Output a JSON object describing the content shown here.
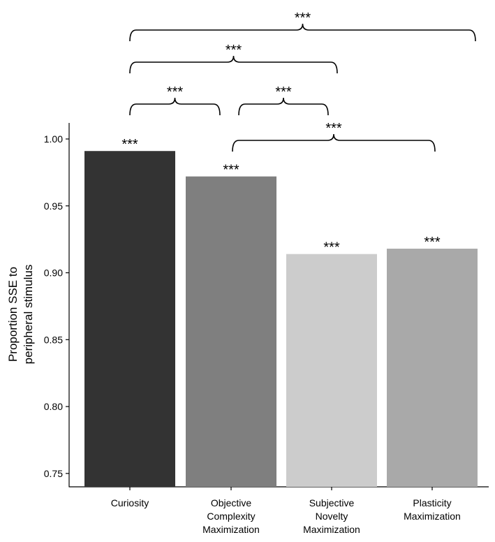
{
  "chart_data": {
    "type": "bar",
    "title": "",
    "xlabel": "",
    "ylabel": "Proportion SSE to\nperipheral stimulus",
    "ylim": [
      0.74,
      1.012
    ],
    "yticks": [
      "0.75",
      "0.80",
      "0.85",
      "0.90",
      "0.95",
      "1.00"
    ],
    "categories": [
      "Curiosity",
      "Objective\nComplexity\nMaximization",
      "Subjective\nNovelty\nMaximization",
      "Plasticity\nMaximization"
    ],
    "values": [
      0.991,
      0.972,
      0.914,
      0.918
    ],
    "bar_colors": [
      "#333333",
      "#7f7f7f",
      "#cccccc",
      "#a9a9a9"
    ],
    "bar_labels": [
      "***",
      "***",
      "***",
      "***"
    ],
    "comparisons": [
      {
        "from": 0,
        "to": 3,
        "label": "***"
      },
      {
        "from": 0,
        "to": 2,
        "label": "***"
      },
      {
        "from": 0,
        "to": 1,
        "label": "***"
      },
      {
        "from": 1,
        "to": 2,
        "label": "***"
      },
      {
        "from": 1,
        "to": 3,
        "label": "***"
      }
    ],
    "grid": false,
    "legend": "none"
  }
}
